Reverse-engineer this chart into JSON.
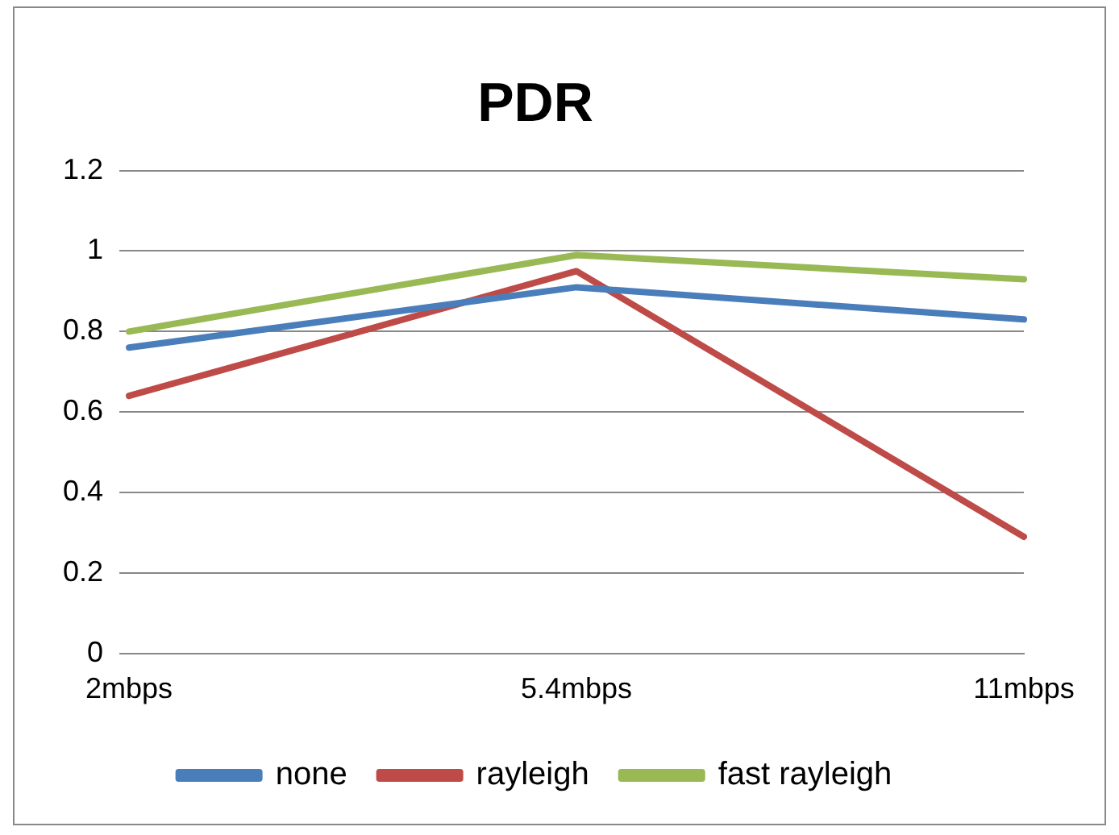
{
  "chart_data": {
    "type": "line",
    "title": "PDR",
    "categories": [
      "2mbps",
      "5.4mbps",
      "11mbps"
    ],
    "series": [
      {
        "name": "none",
        "color": "#4a7ebb",
        "values": [
          0.76,
          0.91,
          0.83
        ]
      },
      {
        "name": "rayleigh",
        "color": "#be4b48",
        "values": [
          0.64,
          0.95,
          0.29
        ]
      },
      {
        "name": "fast rayleigh",
        "color": "#98b954",
        "values": [
          0.8,
          0.99,
          0.93
        ]
      }
    ],
    "ylim": [
      0,
      1.2
    ],
    "yticks": [
      0,
      0.2,
      0.4,
      0.6,
      0.8,
      1,
      1.2
    ],
    "grid": "y",
    "legend": "bottom",
    "marker": "none",
    "line_style": "solid"
  }
}
